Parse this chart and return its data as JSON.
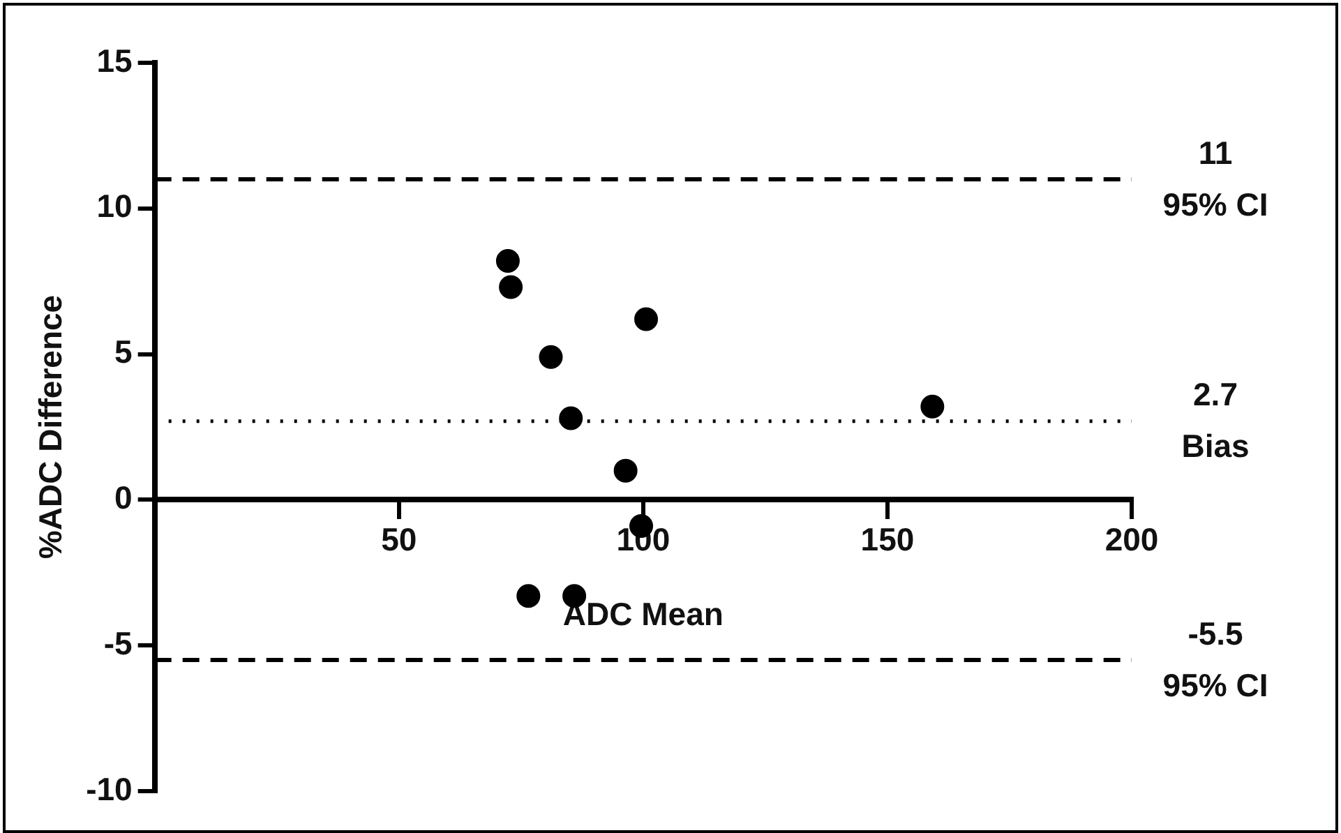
{
  "chart_data": {
    "type": "scatter",
    "xlabel": "ADC Mean",
    "ylabel": "%ADC Difference",
    "x": [
      72.3,
      72.9,
      81.1,
      85.2,
      100.6,
      96.4,
      99.6,
      76.5,
      85.9,
      159.2
    ],
    "values": [
      8.2,
      7.3,
      4.9,
      2.8,
      6.2,
      1.0,
      -0.9,
      -3.3,
      -3.3,
      3.2
    ],
    "color": "#000000",
    "marker": "circle",
    "xlim": [
      0,
      200
    ],
    "xticks": [
      50,
      100,
      150,
      200
    ],
    "ylim": [
      -10,
      15
    ],
    "yticks": [
      -10,
      -5,
      0,
      5,
      10,
      15
    ],
    "grid": false,
    "legend": false,
    "ref_lines": [
      {
        "axis": "y",
        "value": 11,
        "label": "11\n95% CI",
        "line_style": "dashed",
        "color": "#000000"
      },
      {
        "axis": "y",
        "value": 2.7,
        "label": "2.7\nBias",
        "line_style": "dotted",
        "color": "#000000"
      },
      {
        "axis": "y",
        "value": -5.5,
        "label": "-5.5\n95% CI",
        "line_style": "dashed",
        "color": "#000000"
      }
    ]
  }
}
